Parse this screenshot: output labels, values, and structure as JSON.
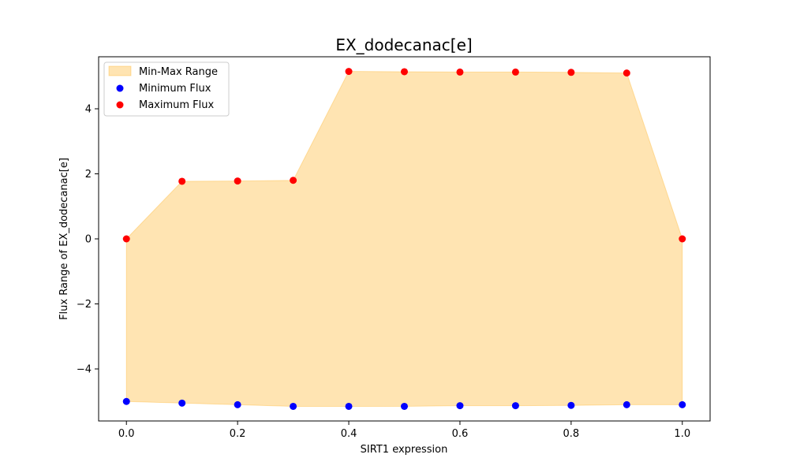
{
  "chart_data": {
    "type": "scatter",
    "title": "EX_dodecanac[e]",
    "xlabel": "SIRT1 expression",
    "ylabel": "Flux Range of EX_dodecanac[e]",
    "x": [
      0.0,
      0.1,
      0.2,
      0.3,
      0.4,
      0.5,
      0.6,
      0.7,
      0.8,
      0.9,
      1.0
    ],
    "series": [
      {
        "name": "Minimum Flux",
        "color": "#0000ff",
        "values": [
          -5.0,
          -5.05,
          -5.1,
          -5.15,
          -5.15,
          -5.15,
          -5.13,
          -5.13,
          -5.12,
          -5.1,
          -5.1
        ]
      },
      {
        "name": "Maximum Flux",
        "color": "#ff0000",
        "values": [
          0.0,
          1.77,
          1.78,
          1.8,
          5.15,
          5.14,
          5.13,
          5.13,
          5.12,
          5.1,
          0.0
        ]
      }
    ],
    "fill": {
      "name": "Min-Max Range",
      "color": "#ffa500",
      "opacity": 0.3
    },
    "xlim": [
      -0.05,
      1.05
    ],
    "ylim": [
      -5.6,
      5.6
    ],
    "xticks": [
      0.0,
      0.2,
      0.4,
      0.6,
      0.8,
      1.0
    ],
    "xtick_labels": [
      "0.0",
      "0.2",
      "0.4",
      "0.6",
      "0.8",
      "1.0"
    ],
    "yticks": [
      -4,
      -2,
      0,
      2,
      4
    ],
    "ytick_labels": [
      "−4",
      "−2",
      "0",
      "2",
      "4"
    ],
    "grid": false,
    "legend_position": "top-left"
  }
}
